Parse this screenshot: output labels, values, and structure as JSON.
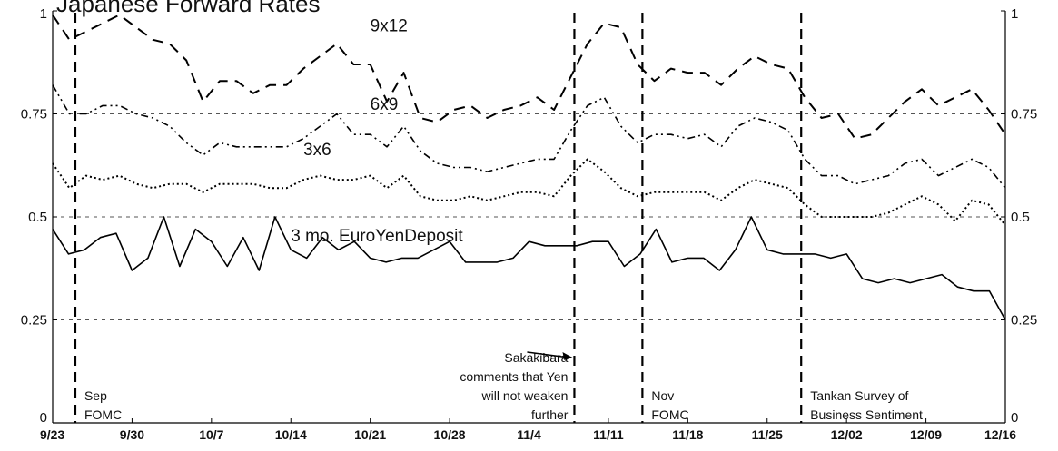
{
  "chart_data": {
    "type": "line",
    "title": "Japanese Forward Rates",
    "xlabel": "",
    "ylabel": "",
    "ylim": [
      0,
      1
    ],
    "y_ticks": [
      "0",
      "0.25",
      "0.5",
      "0.75",
      "1"
    ],
    "x_ticks": [
      "9/23",
      "9/30",
      "10/7",
      "10/14",
      "10/21",
      "10/28",
      "11/4",
      "11/11",
      "11/18",
      "11/25",
      "12/02",
      "12/09",
      "12/16"
    ],
    "grid": "horizontal dashed",
    "series": [
      {
        "name": "9x12",
        "style": "dashed",
        "values": [
          0.99,
          0.93,
          0.95,
          0.97,
          0.99,
          0.96,
          0.93,
          0.92,
          0.88,
          0.78,
          0.83,
          0.83,
          0.8,
          0.82,
          0.82,
          0.86,
          0.89,
          0.92,
          0.87,
          0.87,
          0.78,
          0.85,
          0.74,
          0.73,
          0.76,
          0.77,
          0.74,
          0.76,
          0.77,
          0.79,
          0.76,
          0.84,
          0.92,
          0.97,
          0.96,
          0.87,
          0.83,
          0.86,
          0.85,
          0.85,
          0.82,
          0.86,
          0.89,
          0.87,
          0.86,
          0.79,
          0.74,
          0.75,
          0.69,
          0.7,
          0.74,
          0.78,
          0.81,
          0.77,
          0.79,
          0.81,
          0.76,
          0.7
        ]
      },
      {
        "name": "6x9",
        "style": "dash-dot",
        "values": [
          0.82,
          0.75,
          0.75,
          0.77,
          0.77,
          0.75,
          0.74,
          0.72,
          0.68,
          0.65,
          0.68,
          0.67,
          0.67,
          0.67,
          0.67,
          0.69,
          0.72,
          0.75,
          0.7,
          0.7,
          0.67,
          0.72,
          0.66,
          0.63,
          0.62,
          0.62,
          0.61,
          0.62,
          0.63,
          0.64,
          0.64,
          0.71,
          0.77,
          0.79,
          0.72,
          0.68,
          0.7,
          0.7,
          0.69,
          0.7,
          0.67,
          0.72,
          0.74,
          0.73,
          0.71,
          0.64,
          0.6,
          0.6,
          0.58,
          0.59,
          0.6,
          0.63,
          0.64,
          0.6,
          0.62,
          0.64,
          0.62,
          0.57
        ]
      },
      {
        "name": "3x6",
        "style": "dotted",
        "values": [
          0.63,
          0.57,
          0.6,
          0.59,
          0.6,
          0.58,
          0.57,
          0.58,
          0.58,
          0.56,
          0.58,
          0.58,
          0.58,
          0.57,
          0.57,
          0.59,
          0.6,
          0.59,
          0.59,
          0.6,
          0.57,
          0.6,
          0.55,
          0.54,
          0.54,
          0.55,
          0.54,
          0.55,
          0.56,
          0.56,
          0.55,
          0.6,
          0.64,
          0.61,
          0.57,
          0.55,
          0.56,
          0.56,
          0.56,
          0.56,
          0.54,
          0.57,
          0.59,
          0.58,
          0.57,
          0.53,
          0.5,
          0.5,
          0.5,
          0.5,
          0.51,
          0.53,
          0.55,
          0.53,
          0.49,
          0.54,
          0.53,
          0.48
        ]
      },
      {
        "name": "3 mo. EuroYenDeposit",
        "style": "solid",
        "values": [
          0.47,
          0.41,
          0.42,
          0.45,
          0.46,
          0.37,
          0.4,
          0.5,
          0.38,
          0.47,
          0.44,
          0.38,
          0.45,
          0.37,
          0.5,
          0.42,
          0.4,
          0.45,
          0.42,
          0.44,
          0.4,
          0.39,
          0.4,
          0.4,
          0.42,
          0.44,
          0.39,
          0.39,
          0.39,
          0.4,
          0.44,
          0.43,
          0.43,
          0.43,
          0.44,
          0.44,
          0.38,
          0.41,
          0.47,
          0.39,
          0.4,
          0.4,
          0.37,
          0.42,
          0.5,
          0.42,
          0.41,
          0.41,
          0.41,
          0.4,
          0.41,
          0.35,
          0.34,
          0.35,
          0.34,
          0.35,
          0.36,
          0.33,
          0.32,
          0.32,
          0.25
        ]
      }
    ],
    "events": [
      {
        "date": "9/25",
        "label_lines": [
          "Sep",
          "FOMC"
        ]
      },
      {
        "date": "11/8",
        "label_lines": [
          "Sakakibara",
          "comments that Yen",
          "will not weaken",
          "further"
        ]
      },
      {
        "date": "11/14",
        "label_lines": [
          "Nov",
          "FOMC"
        ]
      },
      {
        "date": "11/28",
        "label_lines": [
          "Tankan Survey of",
          "Business Sentiment"
        ]
      }
    ]
  }
}
